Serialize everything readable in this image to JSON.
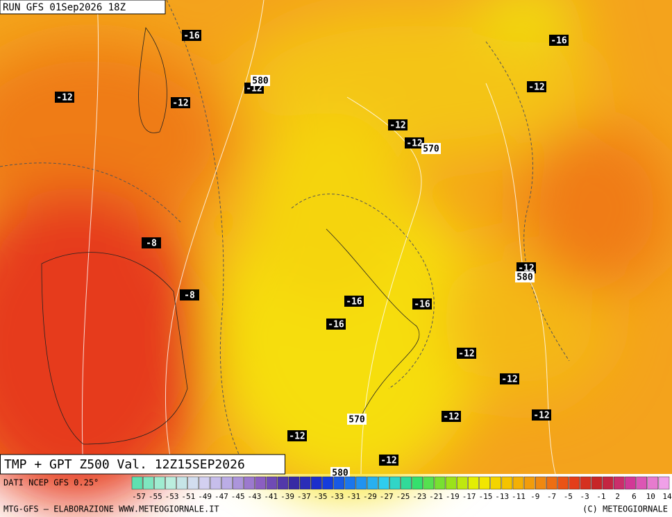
{
  "header": {
    "run": "RUN GFS 01Sep2026 18Z",
    "title": "TMP + GPT Z500 Val. 12Z15SEP2026"
  },
  "map": {
    "temperature_labels": [
      "-16",
      "-16",
      "-12",
      "-12",
      "-12",
      "-12",
      "-12",
      "-12",
      "-8",
      "-12",
      "-8",
      "-16",
      "-16",
      "-16",
      "-12",
      "-12",
      "-12",
      "-12",
      "-12",
      "-12"
    ],
    "height_labels": [
      "580",
      "570",
      "580",
      "570",
      "580"
    ]
  },
  "footer": {
    "source": "DATI NCEP GFS 0.25°",
    "credit": "MTG-GFS — ELABORAZIONE WWW.METEOGIORNALE.IT",
    "copyright": "(C) METEOGIORNALE"
  },
  "colorbar": {
    "colors": [
      "#5fe0b0",
      "#b8f0dc",
      "#d8d8f4",
      "#b8a8e4",
      "#8a5cc0",
      "#3a2aa0",
      "#1430d8",
      "#1c80f0",
      "#30d0f0",
      "#30e070",
      "#8ee01e",
      "#f2f000",
      "#f5c000",
      "#f08a10",
      "#e84018",
      "#c0202a",
      "#d43aa0",
      "#f0a0e8"
    ],
    "labels": [
      -57,
      -55,
      -53,
      -51,
      -49,
      -47,
      -45,
      -43,
      -41,
      -39,
      -37,
      -35,
      -33,
      -31,
      -29,
      -27,
      -25,
      -23,
      -21,
      -19,
      -17,
      -15,
      -13,
      -11,
      -9,
      -7,
      -5,
      -3,
      -1,
      2,
      6,
      10,
      14
    ]
  }
}
